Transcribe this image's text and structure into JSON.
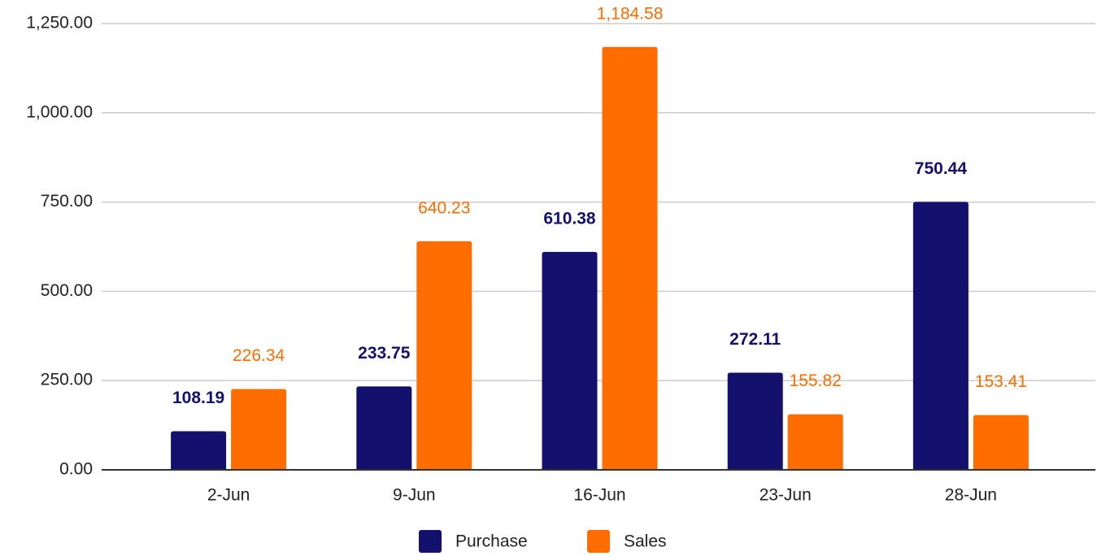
{
  "chart_data": {
    "type": "bar",
    "categories": [
      "2-Jun",
      "9-Jun",
      "16-Jun",
      "23-Jun",
      "28-Jun"
    ],
    "series": [
      {
        "name": "Purchase",
        "color": "#14106e",
        "values": [
          108.19,
          233.75,
          610.38,
          272.11,
          750.44
        ],
        "value_labels": [
          "108.19",
          "233.75",
          "610.38",
          "272.11",
          "750.44"
        ]
      },
      {
        "name": "Sales",
        "color": "#ff6d01",
        "values": [
          226.34,
          640.23,
          1184.58,
          155.82,
          153.41
        ],
        "value_labels": [
          "226.34",
          "640.23",
          "1,184.58",
          "155.82",
          "153.41"
        ]
      }
    ],
    "ylim": [
      0,
      1250
    ],
    "yticks": [
      {
        "value": 0,
        "label": "0.00"
      },
      {
        "value": 250,
        "label": "250.00"
      },
      {
        "value": 500,
        "label": "500.00"
      },
      {
        "value": 750,
        "label": "750.00"
      },
      {
        "value": 1000,
        "label": "1,000.00"
      },
      {
        "value": 1250,
        "label": "1,250.00"
      }
    ],
    "grid": true,
    "legend": "bottom"
  }
}
